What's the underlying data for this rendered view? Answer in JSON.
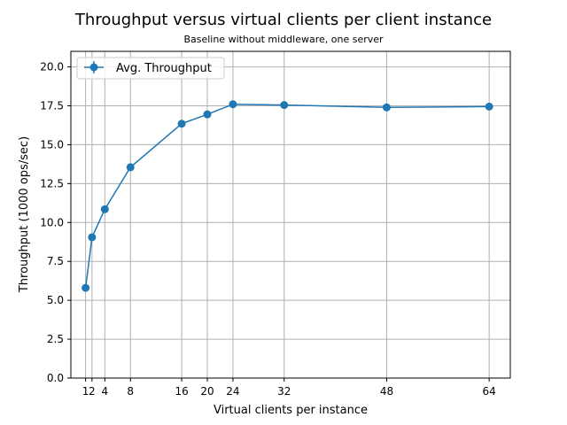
{
  "chart_data": {
    "type": "line",
    "title": "Throughput versus virtual clients per client instance",
    "subtitle": "Baseline without middleware, one server",
    "xlabel": "Virtual clients per instance",
    "ylabel": "Throughput (1000 ops/sec)",
    "xticks": [
      1,
      2,
      4,
      8,
      16,
      20,
      24,
      32,
      48,
      64
    ],
    "yticks": [
      0.0,
      2.5,
      5.0,
      7.5,
      10.0,
      12.5,
      15.0,
      17.5,
      20.0
    ],
    "xlim": [
      -1.3,
      67.3
    ],
    "ylim": [
      0,
      21
    ],
    "grid": true,
    "legend": "top-left",
    "color": "#1f77b4",
    "series": [
      {
        "name": "Avg. Throughput",
        "x": [
          1,
          2,
          4,
          8,
          16,
          20,
          24,
          32,
          48,
          64
        ],
        "y": [
          5.8,
          9.05,
          10.85,
          13.55,
          16.35,
          16.95,
          17.6,
          17.55,
          17.4,
          17.45
        ]
      }
    ]
  }
}
